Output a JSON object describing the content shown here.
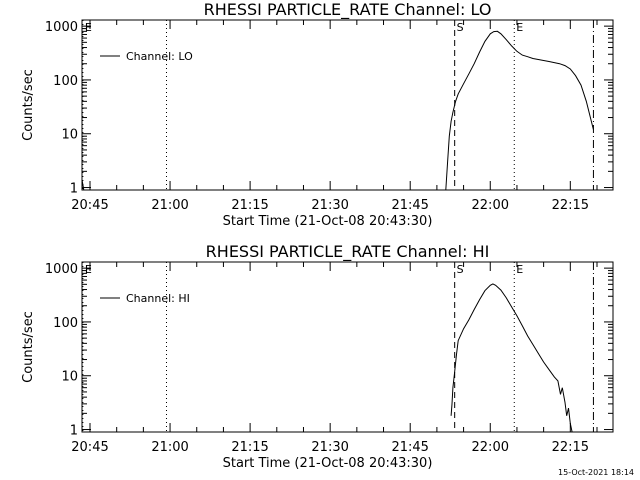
{
  "footer": {
    "timestamp": "15-Oct-2021 18:14"
  },
  "chart_data": [
    {
      "type": "line",
      "title": "RHESSI PARTICLE_RATE Channel: LO",
      "xlabel": "Start Time (21-Oct-08 20:43:30)",
      "ylabel": "Counts/sec",
      "yscale": "log",
      "ylim": [
        0.9,
        1300
      ],
      "xlim": [
        "20:43:30",
        "22:23:00"
      ],
      "x_ticks": [
        "20:45",
        "21:00",
        "21:15",
        "21:30",
        "21:45",
        "22:00",
        "22:15"
      ],
      "y_ticks": [
        "1",
        "10",
        "100",
        "1000"
      ],
      "legend": {
        "position": "top-left",
        "entries": [
          "Channel: LO"
        ]
      },
      "markers": [
        {
          "time": "20:43:40",
          "label": "E",
          "style": "dotted"
        },
        {
          "time": "20:59:20",
          "label": "",
          "style": "dotted"
        },
        {
          "time": "21:53:20",
          "label": "S",
          "style": "dashed"
        },
        {
          "time": "22:04:30",
          "label": "E",
          "style": "dotted"
        },
        {
          "time": "22:19:20",
          "label": "",
          "style": "dashdot"
        }
      ],
      "series": [
        {
          "name": "Channel: LO",
          "segments": [
            [
              [
                "20:43:30",
                1.4
              ],
              [
                "20:43:50",
                0.9
              ]
            ],
            [
              [
                "21:51:40",
                0.9
              ],
              [
                "21:52:00",
                3
              ],
              [
                "21:52:20",
                9
              ],
              [
                "21:52:40",
                17
              ],
              [
                "21:53:00",
                25
              ],
              [
                "21:53:30",
                40
              ],
              [
                "21:54:00",
                55
              ],
              [
                "21:55:00",
                85
              ],
              [
                "21:56:00",
                130
              ],
              [
                "21:57:00",
                200
              ],
              [
                "21:58:00",
                330
              ],
              [
                "21:59:00",
                520
              ],
              [
                "22:00:00",
                720
              ],
              [
                "22:00:40",
                790
              ],
              [
                "22:01:20",
                800
              ],
              [
                "22:02:00",
                720
              ],
              [
                "22:03:00",
                560
              ],
              [
                "22:04:00",
                430
              ],
              [
                "22:05:00",
                340
              ],
              [
                "22:06:00",
                290
              ],
              [
                "22:07:00",
                270
              ],
              [
                "22:08:00",
                250
              ],
              [
                "22:09:00",
                240
              ],
              [
                "22:10:00",
                230
              ],
              [
                "22:11:00",
                220
              ],
              [
                "22:12:00",
                210
              ],
              [
                "22:13:00",
                200
              ],
              [
                "22:14:00",
                185
              ],
              [
                "22:15:00",
                160
              ],
              [
                "22:16:00",
                120
              ],
              [
                "22:17:00",
                80
              ],
              [
                "22:18:00",
                40
              ],
              [
                "22:19:00",
                16
              ],
              [
                "22:19:20",
                12
              ]
            ]
          ]
        }
      ]
    },
    {
      "type": "line",
      "title": "RHESSI PARTICLE_RATE Channel: HI",
      "xlabel": "Start Time (21-Oct-08 20:43:30)",
      "ylabel": "Counts/sec",
      "yscale": "log",
      "ylim": [
        0.9,
        1300
      ],
      "xlim": [
        "20:43:30",
        "22:23:00"
      ],
      "x_ticks": [
        "20:45",
        "21:00",
        "21:15",
        "21:30",
        "21:45",
        "22:00",
        "22:15"
      ],
      "y_ticks": [
        "1",
        "10",
        "100",
        "1000"
      ],
      "legend": {
        "position": "top-left",
        "entries": [
          "Channel: HI"
        ]
      },
      "markers": [
        {
          "time": "20:43:40",
          "label": "E",
          "style": "dotted"
        },
        {
          "time": "20:59:20",
          "label": "",
          "style": "dotted"
        },
        {
          "time": "21:53:20",
          "label": "S",
          "style": "dashed"
        },
        {
          "time": "22:04:30",
          "label": "E",
          "style": "dotted"
        },
        {
          "time": "22:19:20",
          "label": "",
          "style": "dashdot"
        }
      ],
      "series": [
        {
          "name": "Channel: HI",
          "segments": [
            [
              [
                "21:52:40",
                1.8
              ],
              [
                "21:52:50",
                3
              ],
              [
                "21:53:00",
                6
              ],
              [
                "21:53:20",
                12
              ],
              [
                "21:53:40",
                25
              ],
              [
                "21:54:00",
                45
              ],
              [
                "21:55:00",
                75
              ],
              [
                "21:56:00",
                110
              ],
              [
                "21:57:00",
                170
              ],
              [
                "21:58:00",
                260
              ],
              [
                "21:59:00",
                380
              ],
              [
                "22:00:00",
                480
              ],
              [
                "22:00:30",
                510
              ],
              [
                "22:01:00",
                480
              ],
              [
                "22:02:00",
                390
              ],
              [
                "22:03:00",
                280
              ],
              [
                "22:04:00",
                190
              ],
              [
                "22:05:00",
                130
              ],
              [
                "22:06:00",
                85
              ],
              [
                "22:07:00",
                55
              ],
              [
                "22:08:00",
                38
              ],
              [
                "22:09:00",
                26
              ],
              [
                "22:10:00",
                18
              ],
              [
                "22:11:00",
                13
              ],
              [
                "22:12:00",
                9.5
              ],
              [
                "22:12:40",
                8
              ],
              [
                "22:13:10",
                4.5
              ],
              [
                "22:13:30",
                6
              ],
              [
                "22:14:00",
                3.2
              ],
              [
                "22:14:20",
                1.8
              ],
              [
                "22:14:40",
                2.5
              ],
              [
                "22:15:00",
                1.3
              ],
              [
                "22:15:20",
                0.9
              ]
            ]
          ]
        }
      ]
    }
  ]
}
